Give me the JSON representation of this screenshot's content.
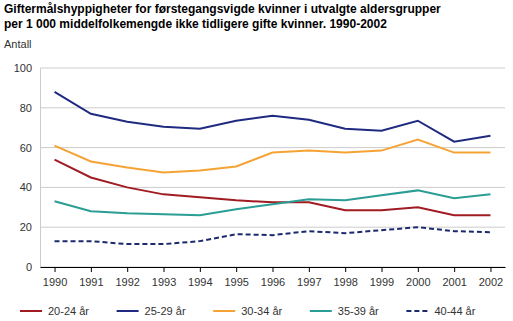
{
  "chart_data": {
    "type": "line",
    "title": "Giftermålshyppigheter for førstegangsvigde kvinner i utvalgte aldersgrupper",
    "subtitle": "per 1 000 middelfolkemengde ikke tidligere gifte kvinner. 1990-2002",
    "y_label": "Antall",
    "x": [
      1990,
      1991,
      1992,
      1993,
      1994,
      1995,
      1996,
      1997,
      1998,
      1999,
      2000,
      2001,
      2002
    ],
    "xlim": [
      1989.6,
      2002.4
    ],
    "xticks": [
      1990,
      1991,
      1992,
      1993,
      1994,
      1995,
      1996,
      1997,
      1998,
      1999,
      2000,
      2001,
      2002
    ],
    "ylim": [
      0,
      100
    ],
    "yticks": [
      0,
      20,
      40,
      60,
      80,
      100
    ],
    "grid": true,
    "legend": "bottom",
    "series": [
      {
        "name": "20-24 år",
        "color": "#a01c22",
        "line_style": "solid",
        "values": [
          54,
          45,
          40,
          36.5,
          35,
          33.5,
          32.5,
          32.5,
          28.5,
          28.5,
          30,
          26,
          26
        ]
      },
      {
        "name": "25-29 år",
        "color": "#1f2a80",
        "line_style": "solid",
        "values": [
          88,
          77,
          73,
          70.5,
          69.5,
          73.5,
          76,
          74,
          69.5,
          68.5,
          73.5,
          63,
          66
        ]
      },
      {
        "name": "30-34 år",
        "color": "#f5a334",
        "line_style": "solid",
        "values": [
          61,
          53,
          50,
          47.5,
          48.5,
          50.5,
          57.5,
          58.5,
          57.5,
          58.5,
          64,
          57.5,
          57.5
        ]
      },
      {
        "name": "35-39 år",
        "color": "#2a9d94",
        "line_style": "solid",
        "values": [
          33,
          28,
          27,
          26.5,
          26,
          29,
          31.5,
          34,
          33.5,
          36,
          38.5,
          34.5,
          36.5
        ]
      },
      {
        "name": "40-44 år",
        "color": "#1a2a6c",
        "line_style": "dashed",
        "values": [
          13,
          13,
          11.5,
          11.5,
          13,
          16.5,
          16,
          18,
          17,
          18.5,
          20,
          18,
          17.5
        ]
      }
    ]
  }
}
